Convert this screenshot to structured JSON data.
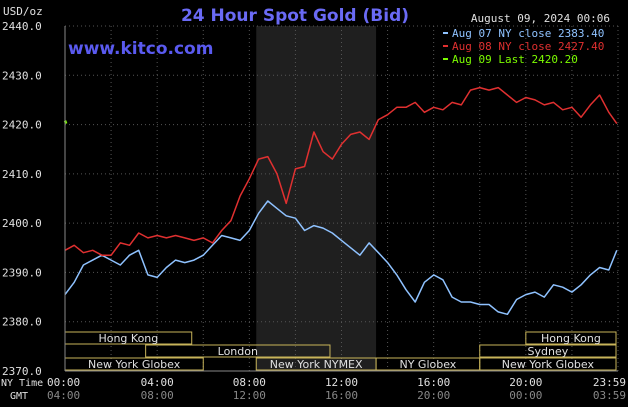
{
  "chart_data": {
    "type": "line",
    "title": "24 Hour Spot Gold (Bid)",
    "ylabel": "USD/oz",
    "ylim": [
      2370,
      2440
    ],
    "yticks": [
      "2440.0",
      "2430.0",
      "2420.0",
      "2410.0",
      "2400.0",
      "2390.0",
      "2380.0",
      "2370.0"
    ],
    "x_unit": "hours",
    "xlim": [
      0,
      24
    ],
    "grid": true,
    "timestamp": "August 09, 2024 00:06",
    "watermark": "www.kitco.com",
    "nymex_shade_hours": [
      8.3,
      13.5
    ],
    "x_row_ny": {
      "label": "NY Time",
      "ticks": [
        "00:00",
        "04:00",
        "08:00",
        "12:00",
        "16:00",
        "20:00",
        "23:59"
      ]
    },
    "x_row_gmt": {
      "label": "GMT",
      "ticks": [
        "04:00",
        "08:00",
        "12:00",
        "16:00",
        "20:00",
        "00:00",
        "03:59"
      ]
    },
    "legend_position": "top-right",
    "legend": [
      {
        "label": "Aug 07 NY close 2383.40",
        "color": "#8fc2ff"
      },
      {
        "label": "Aug 08 NY close 2427.40",
        "color": "#e03030"
      },
      {
        "label": "Aug 09 Last 2420.20",
        "color": "#7cfc00"
      }
    ],
    "sessions": [
      {
        "label": "Hong Kong",
        "start": 0,
        "end": 5.5,
        "row": 0
      },
      {
        "label": "Hong Kong",
        "start": 20.0,
        "end": 24,
        "row": 0
      },
      {
        "label": "London",
        "start": 3.5,
        "end": 11.5,
        "row": 1
      },
      {
        "label": "Sydney",
        "start": 18.0,
        "end": 24,
        "row": 1
      },
      {
        "label": "New York Globex",
        "start": 0,
        "end": 6.0,
        "row": 2
      },
      {
        "label": "New York NYMEX",
        "start": 8.3,
        "end": 13.5,
        "row": 2
      },
      {
        "label": "NY Globex",
        "start": 13.5,
        "end": 18.0,
        "row": 2
      },
      {
        "label": "New York Globex",
        "start": 18.0,
        "end": 24,
        "row": 2
      }
    ],
    "series": [
      {
        "name": "Aug 07",
        "color": "#8fc2ff",
        "x": [
          0,
          0.4,
          0.8,
          1.2,
          1.6,
          2.0,
          2.4,
          2.8,
          3.2,
          3.6,
          4.0,
          4.4,
          4.8,
          5.2,
          5.6,
          6.0,
          6.4,
          6.8,
          7.2,
          7.6,
          8.0,
          8.4,
          8.8,
          9.2,
          9.6,
          10.0,
          10.4,
          10.8,
          11.2,
          11.6,
          12.0,
          12.4,
          12.8,
          13.2,
          13.6,
          14.0,
          14.4,
          14.8,
          15.2,
          15.6,
          16.0,
          16.4,
          16.8,
          17.2,
          17.6,
          18.0,
          18.4,
          18.8,
          19.2,
          19.6,
          20.0,
          20.4,
          20.8,
          21.2,
          21.6,
          22.0,
          22.4,
          22.8,
          23.2,
          23.6,
          23.95
        ],
        "values": [
          2385.5,
          2388.0,
          2391.5,
          2392.5,
          2393.5,
          2392.5,
          2391.5,
          2393.5,
          2394.5,
          2389.5,
          2389.0,
          2391.0,
          2392.5,
          2392.0,
          2392.5,
          2393.5,
          2395.5,
          2397.5,
          2397.0,
          2396.5,
          2398.5,
          2402.0,
          2404.5,
          2403.0,
          2401.5,
          2401.0,
          2398.5,
          2399.5,
          2399.0,
          2398.0,
          2396.5,
          2395.0,
          2393.5,
          2396.0,
          2394.0,
          2392.0,
          2389.5,
          2386.5,
          2384.0,
          2388.0,
          2389.5,
          2388.5,
          2385.0,
          2384.0,
          2384.0,
          2383.5,
          2383.5,
          2382.0,
          2381.5,
          2384.5,
          2385.5,
          2386.0,
          2385.0,
          2387.5,
          2387.0,
          2386.0,
          2387.5,
          2389.5,
          2391.0,
          2390.5,
          2394.5
        ]
      },
      {
        "name": "Aug 08",
        "color": "#e03030",
        "x": [
          0,
          0.4,
          0.8,
          1.2,
          1.6,
          2.0,
          2.4,
          2.8,
          3.2,
          3.6,
          4.0,
          4.4,
          4.8,
          5.2,
          5.6,
          6.0,
          6.4,
          6.8,
          7.2,
          7.6,
          8.0,
          8.4,
          8.8,
          9.2,
          9.6,
          10.0,
          10.4,
          10.8,
          11.2,
          11.6,
          12.0,
          12.4,
          12.8,
          13.2,
          13.6,
          14.0,
          14.4,
          14.8,
          15.2,
          15.6,
          16.0,
          16.4,
          16.8,
          17.2,
          17.6,
          18.0,
          18.4,
          18.8,
          19.2,
          19.6,
          20.0,
          20.4,
          20.8,
          21.2,
          21.6,
          22.0,
          22.4,
          22.8,
          23.2,
          23.6,
          23.95
        ],
        "values": [
          2394.5,
          2395.5,
          2394.0,
          2394.5,
          2393.5,
          2393.5,
          2396.0,
          2395.5,
          2398.0,
          2397.0,
          2397.5,
          2397.0,
          2397.5,
          2397.0,
          2396.5,
          2397.0,
          2396.0,
          2398.5,
          2400.5,
          2405.5,
          2409.0,
          2413.0,
          2413.5,
          2410.0,
          2404.0,
          2411.0,
          2411.5,
          2418.5,
          2414.5,
          2413.0,
          2416.0,
          2418.0,
          2418.5,
          2417.0,
          2421.0,
          2422.0,
          2423.5,
          2423.5,
          2424.5,
          2422.5,
          2423.5,
          2423.0,
          2424.5,
          2424.0,
          2427.0,
          2427.5,
          2427.0,
          2427.5,
          2426.0,
          2424.5,
          2425.5,
          2425.0,
          2424.0,
          2424.5,
          2423.0,
          2423.5,
          2421.5,
          2424.0,
          2426.0,
          2422.5,
          2420.2
        ]
      },
      {
        "name": "Aug 09",
        "color": "#7cfc00",
        "x": [
          0,
          0.05
        ],
        "values": [
          2420.8,
          2420.2
        ]
      }
    ]
  }
}
